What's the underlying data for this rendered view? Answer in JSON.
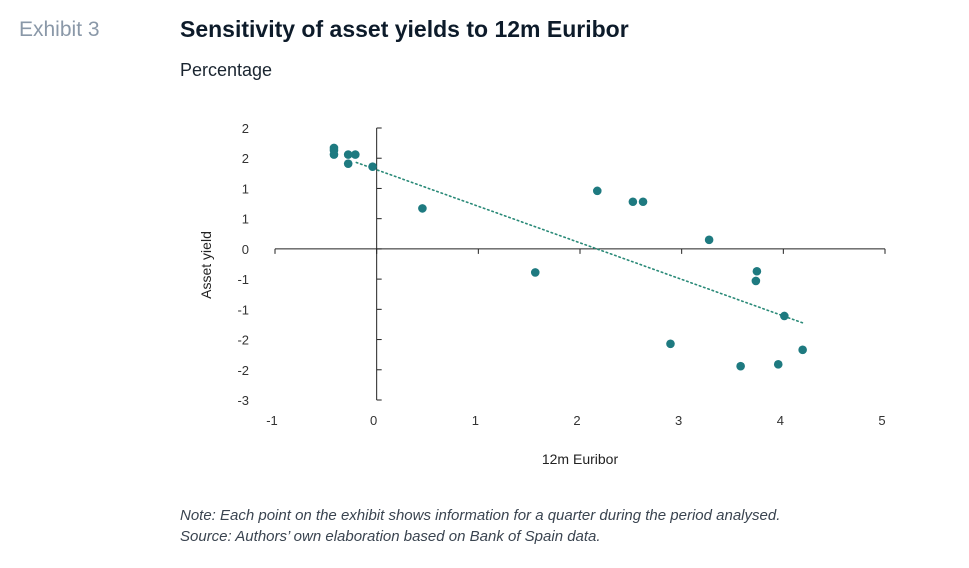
{
  "header": {
    "exhibit_label": "Exhibit 3",
    "title": "Sensitivity of asset yields to 12m Euribor",
    "subtitle": "Percentage"
  },
  "footer": {
    "note": "Note: Each point on the exhibit shows information for a quarter during the period analysed.",
    "source": "Source: Authors’ own elaboration based on Bank of Spain data."
  },
  "colors": {
    "points": "#1e7a80",
    "trendline": "#2a8a78",
    "axis": "#222222"
  },
  "chart_data": {
    "type": "scatter",
    "title": "Sensitivity of asset yields to 12m Euribor",
    "subtitle": "Percentage",
    "xlabel": "12m Euribor",
    "ylabel": "Asset yield",
    "xlim": [
      -1,
      5
    ],
    "ylim": [
      -2.5,
      2.0
    ],
    "x_ticks": [
      -1,
      0,
      1,
      2,
      3,
      4,
      5
    ],
    "x_tick_labels": [
      "-1",
      "0",
      "1",
      "2",
      "3",
      "4",
      "5"
    ],
    "y_ticks": [
      2.0,
      1.5,
      1.0,
      0.5,
      0.0,
      -0.5,
      -1.0,
      -1.5,
      -2.0,
      -2.5
    ],
    "y_tick_labels": [
      "2",
      "2",
      "1",
      "1",
      "0",
      "-1",
      "-1",
      "-2",
      "-2",
      "-3"
    ],
    "grid": false,
    "series": [
      {
        "name": "Quarters",
        "points": [
          {
            "x": -0.42,
            "y": 1.67
          },
          {
            "x": -0.42,
            "y": 1.63
          },
          {
            "x": -0.42,
            "y": 1.56
          },
          {
            "x": -0.28,
            "y": 1.56
          },
          {
            "x": -0.21,
            "y": 1.56
          },
          {
            "x": -0.28,
            "y": 1.41
          },
          {
            "x": -0.04,
            "y": 1.36
          },
          {
            "x": 0.45,
            "y": 0.67
          },
          {
            "x": 2.17,
            "y": 0.96
          },
          {
            "x": 2.52,
            "y": 0.78
          },
          {
            "x": 2.62,
            "y": 0.78
          },
          {
            "x": 3.27,
            "y": 0.15
          },
          {
            "x": 1.56,
            "y": -0.39
          },
          {
            "x": 3.74,
            "y": -0.37
          },
          {
            "x": 3.73,
            "y": -0.53
          },
          {
            "x": 4.01,
            "y": -1.11
          },
          {
            "x": 2.89,
            "y": -1.57
          },
          {
            "x": 4.19,
            "y": -1.67
          },
          {
            "x": 3.95,
            "y": -1.91
          },
          {
            "x": 3.58,
            "y": -1.94
          }
        ]
      }
    ],
    "trendline": {
      "style": "dotted",
      "x": [
        -0.2,
        4.2
      ],
      "y": [
        1.43,
        -1.23
      ]
    }
  }
}
